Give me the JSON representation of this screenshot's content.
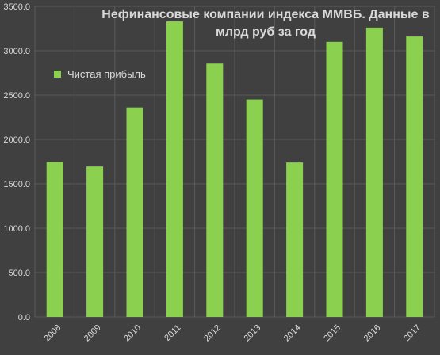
{
  "chart_data": {
    "type": "bar",
    "title": "Нефинансовые компании индекса ММВБ. Данные в млрд руб за год",
    "categories": [
      "2008",
      "2009",
      "2010",
      "2011",
      "2012",
      "2013",
      "2014",
      "2015",
      "2016",
      "2017"
    ],
    "series": [
      {
        "name": "Чистая прибыль",
        "values": [
          1745,
          1695,
          2360,
          3330,
          2855,
          2450,
          1740,
          3100,
          3260,
          3160
        ]
      }
    ],
    "y_ticks": [
      "0.0",
      "500.0",
      "1000.0",
      "1500.0",
      "2000.0",
      "2500.0",
      "3000.0",
      "3500.0"
    ],
    "ylim": [
      0,
      3500
    ],
    "grid": true,
    "legend_position": "top-left"
  },
  "colors": {
    "background": "#404040",
    "bar": "#8cd04f",
    "grid": "#5a5a5a",
    "text": "#d9d9d9"
  }
}
